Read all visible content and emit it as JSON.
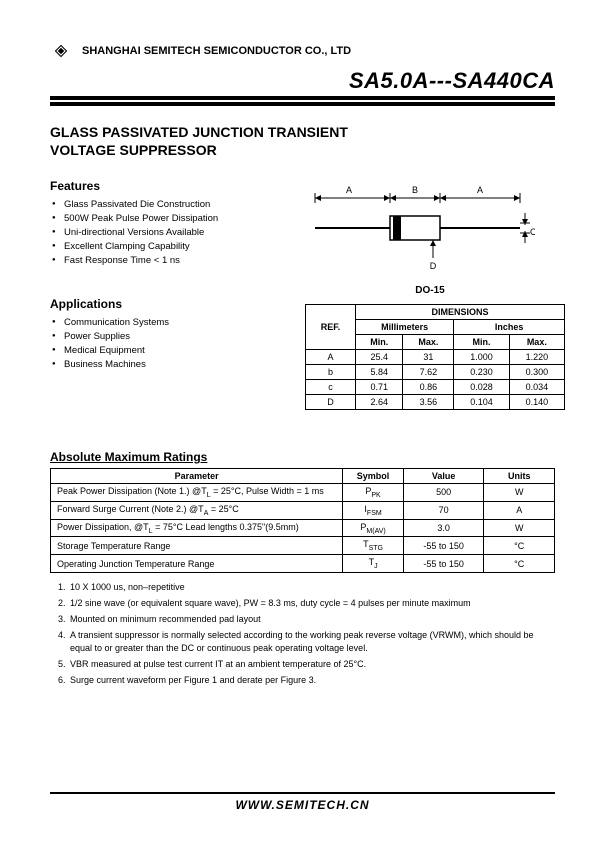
{
  "company": "SHANGHAI SEMITECH SEMICONDUCTOR CO., LTD",
  "part_range": "SA5.0A---SA440CA",
  "title_line1": "GLASS PASSIVATED JUNCTION TRANSIENT",
  "title_line2": "VOLTAGE SUPPRESSOR",
  "package_label": "DO-15",
  "features_h": "Features",
  "features": [
    "Glass Passivated Die Construction",
    "500W Peak Pulse Power Dissipation",
    "Uni-directional Versions Available",
    "Excellent Clamping Capability",
    "Fast Response Time < 1 ns"
  ],
  "applications_h": "Applications",
  "applications": [
    "Communication Systems",
    "Power Supplies",
    "Medical Equipment",
    "Business Machines"
  ],
  "dim_header": "DIMENSIONS",
  "dim_ref": "REF.",
  "dim_mm": "Millimeters",
  "dim_in": "Inches",
  "dim_min": "Min.",
  "dim_max": "Max.",
  "dim_rows": [
    {
      "ref": "A",
      "mm_min": "25.4",
      "mm_max": "31",
      "in_min": "1.000",
      "in_max": "1.220"
    },
    {
      "ref": "b",
      "mm_min": "5.84",
      "mm_max": "7.62",
      "in_min": "0.230",
      "in_max": "0.300"
    },
    {
      "ref": "c",
      "mm_min": "0.71",
      "mm_max": "0.86",
      "in_min": "0.028",
      "in_max": "0.034"
    },
    {
      "ref": "D",
      "mm_min": "2.64",
      "mm_max": "3.56",
      "in_min": "0.104",
      "in_max": "0.140"
    }
  ],
  "abs_h": "Absolute Maximum Ratings",
  "abs_cols": {
    "param": "Parameter",
    "sym": "Symbol",
    "val": "Value",
    "unit": "Units"
  },
  "abs_rows": [
    {
      "p": "Peak Power Dissipation (Note 1.) @T_L = 25°C, Pulse Width = 1 ms",
      "s": "P_PK",
      "v": "500",
      "u": "W"
    },
    {
      "p": "Forward Surge Current (Note 2.) @T_A = 25°C",
      "s": "I_FSM",
      "v": "70",
      "u": "A"
    },
    {
      "p": "Power Dissipation, @T_L = 75°C Lead lengths 0.375\"(9.5mm)",
      "s": "P_M(AV)",
      "v": "3.0",
      "u": "W"
    },
    {
      "p": "Storage Temperature Range",
      "s": "T_STG",
      "v": "-55 to 150",
      "u": "°C"
    },
    {
      "p": "Operating Junction Temperature Range",
      "s": "T_J",
      "v": "-55 to 150",
      "u": "°C"
    }
  ],
  "notes": [
    "10 X 1000 us, non–repetitive",
    "1/2 sine wave (or equivalent square wave), PW = 8.3 ms, duty cycle = 4 pulses per minute maximum",
    "Mounted on minimum recommended pad layout",
    "A transient suppressor is normally selected according to the working peak reverse voltage (VRWM), which should be equal to or greater than the DC or continuous peak operating voltage level.",
    "VBR measured at pulse test current IT at an ambient temperature of 25°C.",
    "Surge current waveform per Figure 1 and derate per Figure 3."
  ],
  "footer_url": "WWW.SEMITECH.CN",
  "drawing_labels": {
    "A": "A",
    "B": "B",
    "C": "C",
    "D": "D"
  },
  "colors": {
    "line": "#000000",
    "bg": "#ffffff"
  }
}
